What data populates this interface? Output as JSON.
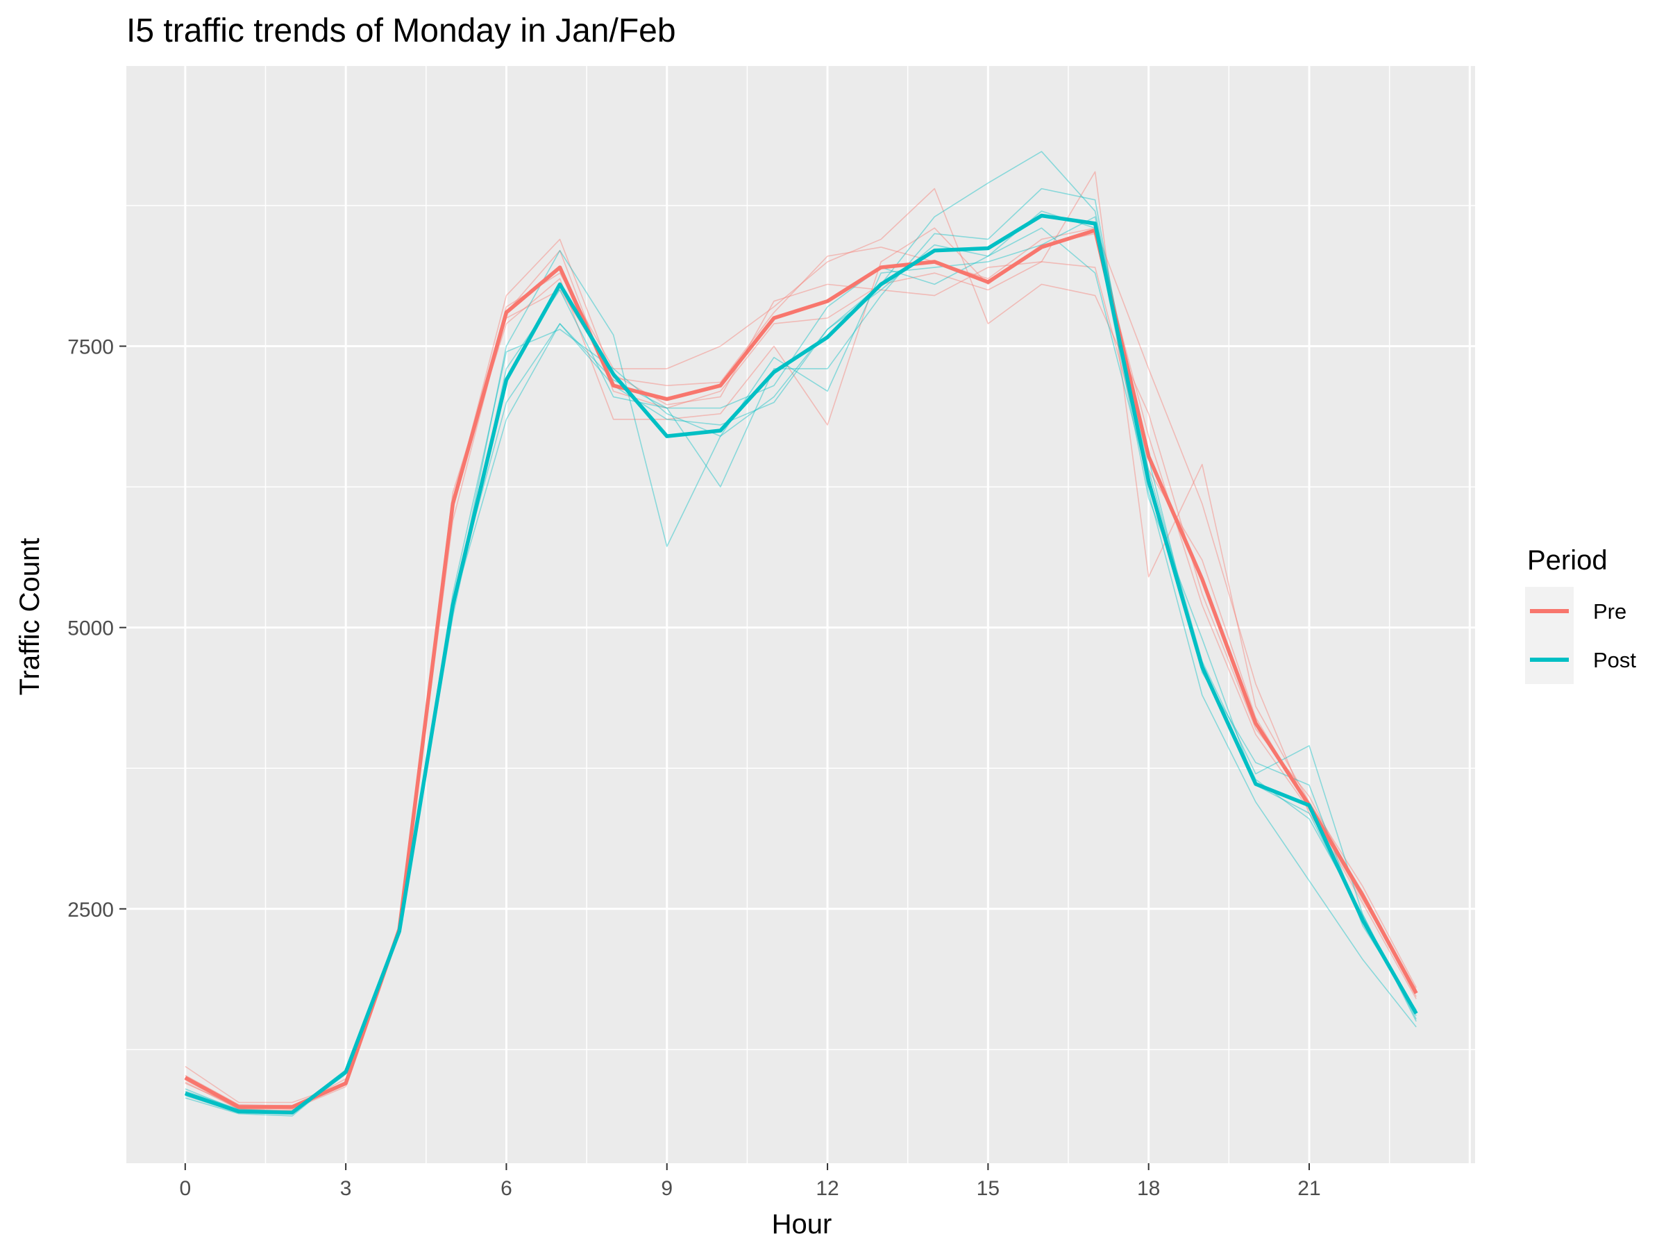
{
  "chart_data": {
    "type": "line",
    "title": "I5 traffic trends of Monday in Jan/Feb",
    "xlabel": "Hour",
    "ylabel": "Traffic Count",
    "x_ticks": [
      0,
      3,
      6,
      9,
      12,
      15,
      18,
      21
    ],
    "y_ticks": [
      2500,
      5000,
      7500
    ],
    "xlim": [
      -1.1,
      24.1
    ],
    "ylim": [
      240,
      9990
    ],
    "grid": true,
    "legend": {
      "title": "Period",
      "placement": "right"
    },
    "colors": {
      "Pre": "#f8766d",
      "Post": "#00bfc4",
      "panel": "#ebebeb",
      "grid": "#ffffff"
    },
    "x": [
      0,
      1,
      2,
      3,
      4,
      5,
      6,
      7,
      8,
      9,
      10,
      11,
      12,
      13,
      14,
      15,
      16,
      17,
      18,
      19,
      20,
      21,
      22,
      23
    ],
    "series": [
      {
        "name": "Pre",
        "values": [
          1000,
          740,
          740,
          950,
          2320,
          6100,
          7800,
          8200,
          7150,
          7030,
          7150,
          7750,
          7900,
          8200,
          8250,
          8070,
          8380,
          8530,
          6520,
          5430,
          4150,
          3420,
          2620,
          1750
        ]
      },
      {
        "name": "Post",
        "values": [
          860,
          700,
          690,
          1050,
          2300,
          5200,
          7200,
          8050,
          7250,
          6700,
          6750,
          7270,
          7580,
          8050,
          8350,
          8370,
          8660,
          8590,
          6300,
          4650,
          3610,
          3420,
          2400,
          1570
        ]
      }
    ],
    "individual_series": [
      {
        "period": "Pre",
        "values": [
          1100,
          780,
          780,
          950,
          2340,
          6100,
          7950,
          8450,
          7220,
          7150,
          7180,
          7800,
          8300,
          8380,
          8250,
          8100,
          8450,
          8550,
          7300,
          6100,
          4500,
          3350,
          2650,
          1760
        ]
      },
      {
        "period": "Pre",
        "values": [
          980,
          720,
          710,
          960,
          2300,
          5950,
          7800,
          8350,
          7100,
          6950,
          7100,
          7700,
          7750,
          8050,
          8150,
          8000,
          8250,
          9050,
          5450,
          6450,
          4300,
          3450,
          2700,
          1800
        ]
      },
      {
        "period": "Pre",
        "values": [
          950,
          740,
          720,
          920,
          2310,
          6200,
          7700,
          8100,
          6850,
          6850,
          6900,
          7500,
          6800,
          8250,
          8550,
          8050,
          8400,
          8500,
          6700,
          5200,
          4050,
          3380,
          2550,
          1700
        ]
      },
      {
        "period": "Pre",
        "values": [
          1020,
          760,
          750,
          940,
          2330,
          6050,
          7850,
          8150,
          7300,
          7300,
          7500,
          7850,
          8250,
          8450,
          8900,
          7700,
          8050,
          7950,
          6900,
          5300,
          4100,
          3500,
          2600,
          1720
        ]
      },
      {
        "period": "Pre",
        "values": [
          960,
          720,
          730,
          990,
          2320,
          6150,
          7750,
          8000,
          7250,
          6980,
          7050,
          7900,
          8050,
          8000,
          7950,
          8200,
          8250,
          8200,
          6400,
          5600,
          4200,
          3400,
          2580,
          1780
        ]
      },
      {
        "period": "Post",
        "values": [
          820,
          680,
          660,
          1050,
          2280,
          5150,
          7500,
          8350,
          7600,
          5720,
          6700,
          7050,
          7650,
          8050,
          8650,
          8950,
          9230,
          8700,
          6400,
          4700,
          3700,
          3950,
          2450,
          1500
        ]
      },
      {
        "period": "Post",
        "values": [
          880,
          720,
          700,
          1040,
          2310,
          5250,
          7000,
          7700,
          7200,
          6950,
          6250,
          7300,
          7300,
          7950,
          8500,
          8450,
          8900,
          8800,
          6200,
          4400,
          3450,
          2750,
          2050,
          1450
        ]
      },
      {
        "period": "Post",
        "values": [
          860,
          700,
          690,
          1060,
          2300,
          5100,
          7300,
          8000,
          7050,
          6950,
          6950,
          7150,
          7850,
          8200,
          8050,
          8300,
          8700,
          8550,
          6150,
          4900,
          3600,
          3350,
          2400,
          1550
        ]
      },
      {
        "period": "Post",
        "values": [
          900,
          710,
          680,
          1030,
          2290,
          5300,
          7450,
          7650,
          7300,
          6900,
          6700,
          7400,
          7100,
          8150,
          8200,
          8250,
          8400,
          8650,
          6500,
          4600,
          3800,
          3600,
          2350,
          1600
        ]
      },
      {
        "period": "Post",
        "values": [
          840,
          690,
          700,
          1070,
          2320,
          5200,
          6850,
          7700,
          7150,
          6850,
          6800,
          7000,
          7650,
          8000,
          8400,
          8300,
          8550,
          8150,
          6300,
          4650,
          3650,
          3300,
          2450,
          1520
        ]
      }
    ]
  }
}
